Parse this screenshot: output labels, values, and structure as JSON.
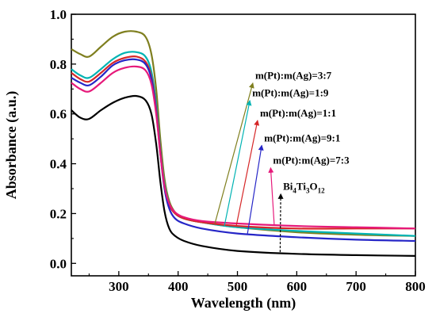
{
  "chart_data": {
    "type": "line",
    "xlabel": "Wavelength (nm)",
    "ylabel": "Absorbance (a.u.)",
    "xlim": [
      220,
      800
    ],
    "ylim": [
      -0.05,
      1.0
    ],
    "xticks": [
      "300",
      "400",
      "500",
      "600",
      "700",
      "800"
    ],
    "yticks": [
      "0.0",
      "0.2",
      "0.4",
      "0.6",
      "0.8",
      "1.0"
    ],
    "grid": false,
    "series": [
      {
        "name": "m(Pt):m(Ag)=3:7",
        "color": "#7f7f1f",
        "points": [
          [
            220,
            0.86
          ],
          [
            235,
            0.84
          ],
          [
            250,
            0.83
          ],
          [
            270,
            0.87
          ],
          [
            290,
            0.91
          ],
          [
            310,
            0.93
          ],
          [
            330,
            0.93
          ],
          [
            345,
            0.91
          ],
          [
            355,
            0.84
          ],
          [
            363,
            0.7
          ],
          [
            370,
            0.5
          ],
          [
            377,
            0.34
          ],
          [
            385,
            0.25
          ],
          [
            395,
            0.205
          ],
          [
            410,
            0.18
          ],
          [
            440,
            0.165
          ],
          [
            500,
            0.145
          ],
          [
            600,
            0.125
          ],
          [
            700,
            0.115
          ],
          [
            800,
            0.11
          ]
        ]
      },
      {
        "name": "m(Pt):m(Ag)=1:9",
        "color": "#00b3b3",
        "points": [
          [
            220,
            0.78
          ],
          [
            235,
            0.755
          ],
          [
            250,
            0.745
          ],
          [
            270,
            0.78
          ],
          [
            290,
            0.82
          ],
          [
            310,
            0.845
          ],
          [
            330,
            0.848
          ],
          [
            345,
            0.83
          ],
          [
            355,
            0.77
          ],
          [
            363,
            0.64
          ],
          [
            370,
            0.46
          ],
          [
            377,
            0.32
          ],
          [
            385,
            0.24
          ],
          [
            395,
            0.2
          ],
          [
            410,
            0.18
          ],
          [
            440,
            0.165
          ],
          [
            500,
            0.145
          ],
          [
            600,
            0.13
          ],
          [
            700,
            0.12
          ],
          [
            800,
            0.11
          ]
        ]
      },
      {
        "name": "m(Pt):m(Ag)=1:1",
        "color": "#d62728",
        "points": [
          [
            220,
            0.765
          ],
          [
            235,
            0.74
          ],
          [
            250,
            0.73
          ],
          [
            270,
            0.765
          ],
          [
            290,
            0.805
          ],
          [
            310,
            0.825
          ],
          [
            330,
            0.83
          ],
          [
            345,
            0.81
          ],
          [
            355,
            0.75
          ],
          [
            363,
            0.62
          ],
          [
            370,
            0.45
          ],
          [
            377,
            0.31
          ],
          [
            385,
            0.235
          ],
          [
            395,
            0.2
          ],
          [
            410,
            0.18
          ],
          [
            440,
            0.165
          ],
          [
            500,
            0.15
          ],
          [
            600,
            0.14
          ],
          [
            700,
            0.14
          ],
          [
            800,
            0.14
          ]
        ]
      },
      {
        "name": "m(Pt):m(Ag)=9:1",
        "color": "#2626c7",
        "points": [
          [
            220,
            0.745
          ],
          [
            235,
            0.725
          ],
          [
            250,
            0.715
          ],
          [
            270,
            0.75
          ],
          [
            290,
            0.795
          ],
          [
            310,
            0.815
          ],
          [
            330,
            0.818
          ],
          [
            345,
            0.8
          ],
          [
            355,
            0.74
          ],
          [
            363,
            0.61
          ],
          [
            370,
            0.44
          ],
          [
            377,
            0.3
          ],
          [
            385,
            0.22
          ],
          [
            395,
            0.18
          ],
          [
            410,
            0.16
          ],
          [
            440,
            0.14
          ],
          [
            500,
            0.12
          ],
          [
            600,
            0.105
          ],
          [
            700,
            0.095
          ],
          [
            800,
            0.09
          ]
        ]
      },
      {
        "name": "m(Pt):m(Ag)=7:3",
        "color": "#e6197a",
        "points": [
          [
            220,
            0.725
          ],
          [
            235,
            0.7
          ],
          [
            250,
            0.69
          ],
          [
            270,
            0.725
          ],
          [
            290,
            0.765
          ],
          [
            310,
            0.785
          ],
          [
            330,
            0.79
          ],
          [
            345,
            0.775
          ],
          [
            355,
            0.72
          ],
          [
            363,
            0.6
          ],
          [
            370,
            0.44
          ],
          [
            377,
            0.31
          ],
          [
            385,
            0.24
          ],
          [
            395,
            0.205
          ],
          [
            410,
            0.185
          ],
          [
            440,
            0.17
          ],
          [
            500,
            0.16
          ],
          [
            600,
            0.15
          ],
          [
            700,
            0.145
          ],
          [
            800,
            0.14
          ]
        ]
      },
      {
        "name": "Bi4Ti3O12",
        "color": "#000000",
        "points": [
          [
            220,
            0.615
          ],
          [
            235,
            0.585
          ],
          [
            250,
            0.58
          ],
          [
            270,
            0.615
          ],
          [
            290,
            0.645
          ],
          [
            310,
            0.665
          ],
          [
            330,
            0.672
          ],
          [
            345,
            0.655
          ],
          [
            355,
            0.6
          ],
          [
            363,
            0.48
          ],
          [
            370,
            0.33
          ],
          [
            377,
            0.21
          ],
          [
            385,
            0.14
          ],
          [
            395,
            0.11
          ],
          [
            410,
            0.09
          ],
          [
            440,
            0.07
          ],
          [
            500,
            0.05
          ],
          [
            600,
            0.038
          ],
          [
            700,
            0.033
          ],
          [
            800,
            0.03
          ]
        ]
      }
    ],
    "annotations": [
      {
        "main": "m(Pt):m(Ag)=3:7",
        "tx": 530,
        "ty": 0.74,
        "ax": 462,
        "ay": 0.16,
        "color": "#7f7f1f"
      },
      {
        "main": "m(Pt):m(Ag)=1:9",
        "tx": 525,
        "ty": 0.67,
        "ax": 478,
        "ay": 0.15,
        "color": "#00b3b3"
      },
      {
        "main": "m(Pt):m(Ag)=1:1",
        "tx": 538,
        "ty": 0.59,
        "ax": 498,
        "ay": 0.15,
        "color": "#d62728"
      },
      {
        "main": "m(Pt):m(Ag)=9:1",
        "tx": 545,
        "ty": 0.49,
        "ax": 517,
        "ay": 0.12,
        "color": "#2626c7"
      },
      {
        "main": "m(Pt):m(Ag)=7:3",
        "tx": 560,
        "ty": 0.4,
        "ax": 562,
        "ay": 0.155,
        "color": "#e6197a"
      },
      {
        "main": "Bi",
        "sub1": "4",
        "mid": "Ti",
        "sub2": "3",
        "mid2": "O",
        "sub3": "12",
        "tx": 577,
        "ty": 0.295,
        "ax": 572,
        "ay": 0.045,
        "color": "#000000",
        "dashed": true
      }
    ]
  }
}
